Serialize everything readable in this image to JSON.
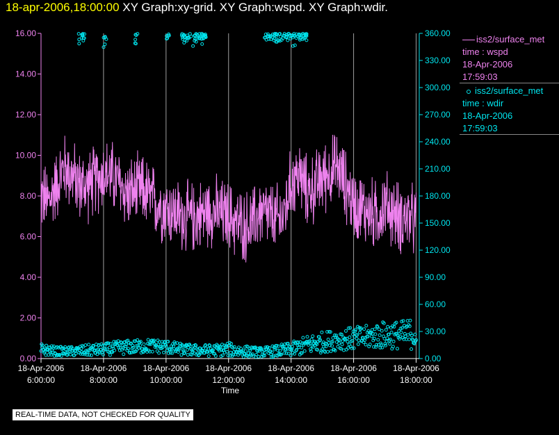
{
  "title": {
    "timestamp": "18-apr-2006,18:00:00",
    "graphs": "XY Graph:xy-grid.  XY Graph:wspd.  XY Graph:wdir."
  },
  "legend": {
    "wspd": {
      "source": "iss2/surface_met",
      "field": "time : wspd",
      "date": "18-Apr-2006",
      "time": "17:59:03"
    },
    "wdir": {
      "source": "iss2/surface_met",
      "field": "time : wdir",
      "date": "18-Apr-2006",
      "time": "17:59:03"
    }
  },
  "footer_note": "REAL-TIME DATA, NOT CHECKED FOR QUALITY",
  "colors": {
    "wspd": "#ee82ee",
    "wdir": "#00e5ee",
    "grid": "#a0a0a0",
    "title_time": "#ffff00",
    "background": "#000000"
  },
  "chart_data": {
    "type": "line",
    "xlabel": "Time",
    "xlim": [
      6.0,
      18.1
    ],
    "x_ticks": [
      {
        "x": 6,
        "date": "18-Apr-2006",
        "time": "6:00:00"
      },
      {
        "x": 8,
        "date": "18-Apr-2006",
        "time": "8:00:00"
      },
      {
        "x": 10,
        "date": "18-Apr-2006",
        "time": "10:00:00"
      },
      {
        "x": 12,
        "date": "18-Apr-2006",
        "time": "12:00:00"
      },
      {
        "x": 14,
        "date": "18-Apr-2006",
        "time": "14:00:00"
      },
      {
        "x": 16,
        "date": "18-Apr-2006",
        "time": "16:00:00"
      },
      {
        "x": 18,
        "date": "18-Apr-2006",
        "time": "18:00:00"
      }
    ],
    "left_axis": {
      "series": "wspd",
      "ylim": [
        0,
        16
      ],
      "ticks": [
        "0.00",
        "2.00",
        "4.00",
        "6.00",
        "8.00",
        "10.00",
        "12.00",
        "14.00",
        "16.00"
      ]
    },
    "right_axis": {
      "series": "wdir",
      "ylim": [
        0,
        360
      ],
      "ticks": [
        "0.00",
        "30.00",
        "60.00",
        "90.00",
        "120.00",
        "150.00",
        "180.00",
        "210.00",
        "240.00",
        "270.00",
        "300.00",
        "330.00",
        "360.00"
      ]
    },
    "grid": "vertical",
    "series": [
      {
        "key": "wspd",
        "style": "line",
        "axis": "left",
        "hours": [
          6.0,
          6.25,
          6.5,
          6.75,
          7.0,
          7.25,
          7.5,
          7.75,
          8.0,
          8.25,
          8.5,
          8.75,
          9.0,
          9.25,
          9.5,
          9.75,
          10.0,
          10.25,
          10.5,
          10.75,
          11.0,
          11.25,
          11.5,
          11.75,
          12.0,
          12.25,
          12.5,
          12.75,
          13.0,
          13.25,
          13.5,
          13.75,
          14.0,
          14.25,
          14.5,
          14.75,
          15.0,
          15.25,
          15.5,
          15.75,
          16.0,
          16.25,
          16.5,
          16.75,
          17.0,
          17.25,
          17.5,
          17.75,
          18.0
        ],
        "mean": [
          8.0,
          7.7,
          8.6,
          9.4,
          9.0,
          8.5,
          8.5,
          8.8,
          9.1,
          9.0,
          8.6,
          8.1,
          8.2,
          8.3,
          7.9,
          7.6,
          7.4,
          7.2,
          7.0,
          6.9,
          7.0,
          7.2,
          7.3,
          7.1,
          7.0,
          6.7,
          6.5,
          6.6,
          7.2,
          7.1,
          6.8,
          7.0,
          8.6,
          9.1,
          8.2,
          8.4,
          8.9,
          9.2,
          9.4,
          8.5,
          7.6,
          7.4,
          7.2,
          7.0,
          7.6,
          7.2,
          6.9,
          7.0,
          6.6
        ],
        "spread": 1.4
      },
      {
        "key": "wdir",
        "style": "points",
        "axis": "right",
        "hours": [
          6.0,
          6.5,
          7.0,
          7.5,
          8.0,
          8.5,
          9.0,
          9.5,
          10.0,
          10.5,
          11.0,
          11.5,
          12.0,
          12.5,
          13.0,
          13.5,
          14.0,
          14.5,
          15.0,
          15.5,
          16.0,
          16.5,
          17.0,
          17.5,
          18.0
        ],
        "mean": [
          10,
          8,
          8,
          9,
          10,
          12,
          13,
          14,
          13,
          10,
          9,
          9,
          10,
          8,
          7,
          8,
          10,
          15,
          18,
          21,
          22,
          24,
          26,
          26,
          28
        ],
        "spread": [
          5,
          4,
          4,
          5,
          5,
          6,
          6,
          6,
          6,
          5,
          5,
          5,
          6,
          5,
          4,
          5,
          6,
          8,
          9,
          9,
          10,
          10,
          12,
          12,
          14
        ],
        "north_wrap_hours": [
          [
            7.2,
            7.4
          ],
          [
            8.0,
            8.1
          ],
          [
            9.0,
            9.1
          ],
          [
            10.0,
            10.1
          ],
          [
            10.45,
            11.3
          ],
          [
            13.15,
            14.5
          ]
        ],
        "north_wrap_range": [
          350,
          360
        ]
      }
    ]
  }
}
